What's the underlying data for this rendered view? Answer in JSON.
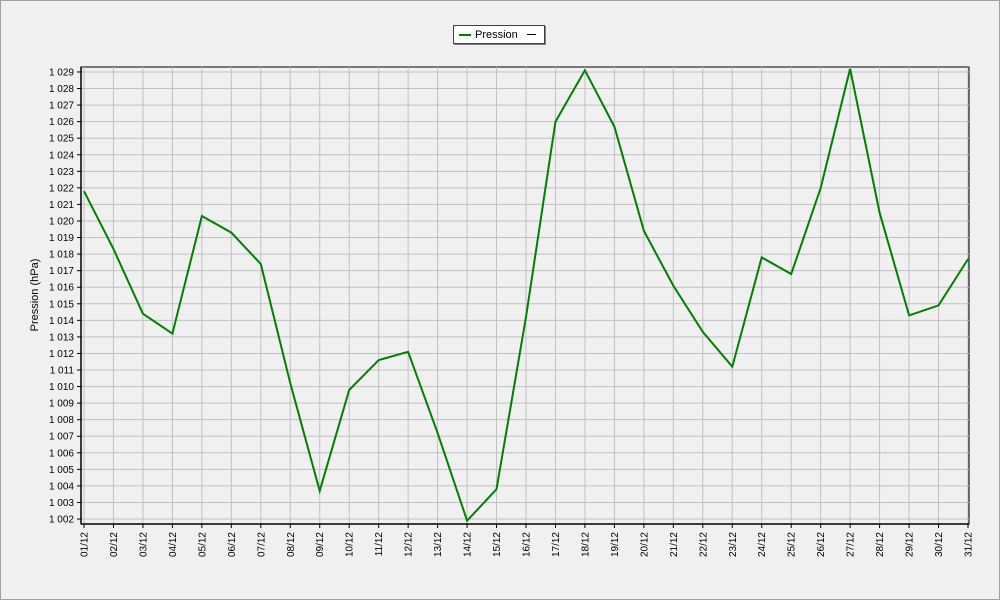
{
  "chart_data": {
    "type": "line",
    "title": "",
    "xlabel": "",
    "ylabel": "Pression (hPa)",
    "ylim": [
      1002,
      1029
    ],
    "grid": true,
    "legend_position": "top-center",
    "categories": [
      "01/12",
      "02/12",
      "03/12",
      "04/12",
      "05/12",
      "06/12",
      "07/12",
      "08/12",
      "09/12",
      "10/12",
      "11/12",
      "12/12",
      "13/12",
      "14/12",
      "15/12",
      "16/12",
      "17/12",
      "18/12",
      "19/12",
      "20/12",
      "21/12",
      "22/12",
      "23/12",
      "24/12",
      "25/12",
      "26/12",
      "27/12",
      "28/12",
      "29/12",
      "30/12",
      "31/12"
    ],
    "y_ticks": [
      "1 002",
      "1 003",
      "1 004",
      "1 005",
      "1 006",
      "1 007",
      "1 008",
      "1 009",
      "1 010",
      "1 011",
      "1 012",
      "1 013",
      "1 014",
      "1 015",
      "1 016",
      "1 017",
      "1 018",
      "1 019",
      "1 020",
      "1 021",
      "1 022",
      "1 023",
      "1 024",
      "1 025",
      "1 026",
      "1 027",
      "1 028",
      "1 029"
    ],
    "series": [
      {
        "name": "Pression",
        "color": "#008000",
        "values": [
          1021.8,
          1018.3,
          1014.4,
          1013.2,
          1020.3,
          1019.3,
          1017.4,
          1010.2,
          1003.7,
          1009.8,
          1011.6,
          1012.1,
          1007.2,
          1001.9,
          1003.8,
          1014.2,
          1026.0,
          1029.1,
          1025.7,
          1019.4,
          1016.1,
          1013.3,
          1011.2,
          1017.8,
          1016.8,
          1022.0,
          1029.2,
          1020.5,
          1014.3,
          1014.9,
          1017.7
        ]
      }
    ]
  }
}
